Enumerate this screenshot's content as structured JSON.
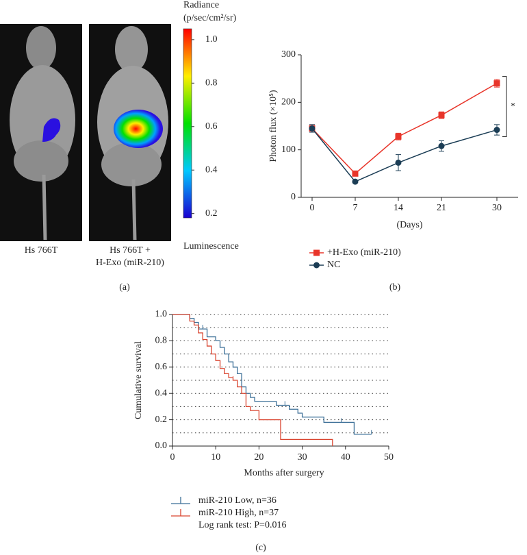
{
  "chart_data": [
    {
      "type": "colorbar",
      "title_lines": [
        "Radiance",
        "(p/sec/cm²/sr)"
      ],
      "footer": "Luminescence",
      "image_labels": [
        [
          "Hs 766T"
        ],
        [
          "Hs 766T +",
          "H-Exo (miR-210)"
        ]
      ],
      "panel_label": "(a)",
      "ylim": [
        0.18,
        1.05
      ],
      "yticks": [
        0.2,
        0.4,
        0.6,
        0.8,
        {
          "value": 1,
          "label": "1.0"
        }
      ],
      "colors": [
        "#1a00d0",
        "#00c8ff",
        "#00e000",
        "#ffee00",
        "#ff0000"
      ]
    },
    {
      "type": "line",
      "panel_label": "(b)",
      "xlabel": "(Days)",
      "ylabel": "Photon flux (×10⁵)",
      "x": [
        0,
        7,
        14,
        21,
        30
      ],
      "xlim": [
        -2,
        34
      ],
      "xticks": [
        0,
        7,
        14,
        21,
        30
      ],
      "ylim": [
        0,
        300
      ],
      "yticks": [
        0,
        100,
        200,
        300
      ],
      "annotation": "*",
      "legend": "bottom-left",
      "series": [
        {
          "name": "+H-Exo (miR-210)",
          "color": "#e8352a",
          "marker": "square",
          "values": [
            145,
            50,
            128,
            173,
            240
          ],
          "errors": [
            8,
            4,
            7,
            7,
            8
          ]
        },
        {
          "name": "NC",
          "color": "#1b3d55",
          "marker": "circle",
          "values": [
            145,
            33,
            73,
            108,
            142
          ],
          "errors": [
            8,
            2,
            17,
            11,
            11
          ]
        }
      ]
    },
    {
      "type": "step",
      "panel_label": "(c)",
      "xlabel": "Months after surgery",
      "ylabel": "Cumulative survival",
      "xlim": [
        0,
        50
      ],
      "xticks": [
        0,
        10,
        20,
        30,
        40,
        50
      ],
      "ylim": [
        0,
        1
      ],
      "yticks": [
        {
          "value": 0,
          "label": "0.0"
        },
        0.2,
        0.4,
        0.6,
        0.8,
        {
          "value": 1,
          "label": "1.0"
        }
      ],
      "ygrid": [
        0.1,
        0.2,
        0.3,
        0.4,
        0.5,
        0.6,
        0.7,
        0.8,
        0.9,
        1
      ],
      "note": "Log rank test: P=0.016",
      "series": [
        {
          "name": "miR-210 Low, n=36",
          "color": "#3a6e96",
          "x": [
            0,
            4,
            5,
            6,
            8,
            10,
            11,
            12,
            13,
            14,
            15,
            16,
            17,
            18,
            19,
            24,
            27,
            29,
            30,
            35,
            42,
            46
          ],
          "values": [
            1,
            0.97,
            0.94,
            0.89,
            0.83,
            0.8,
            0.75,
            0.7,
            0.64,
            0.6,
            0.55,
            0.45,
            0.4,
            0.37,
            0.34,
            0.31,
            0.28,
            0.25,
            0.22,
            0.18,
            0.09,
            0.09
          ],
          "censor_x": [
            7,
            26,
            39,
            46
          ],
          "censor_y": [
            0.89,
            0.31,
            0.18,
            0.09
          ]
        },
        {
          "name": "miR-210 High, n=37",
          "color": "#d9432e",
          "x": [
            0,
            4,
            5,
            6,
            7,
            8,
            9,
            10,
            11,
            12,
            13,
            14,
            15,
            16,
            17,
            18,
            20,
            25,
            37
          ],
          "values": [
            1,
            0.95,
            0.92,
            0.86,
            0.81,
            0.76,
            0.7,
            0.65,
            0.59,
            0.55,
            0.52,
            0.5,
            0.45,
            0.4,
            0.3,
            0.27,
            0.2,
            0.05,
            0
          ],
          "censor_x": [
            14
          ],
          "censor_y": [
            0.5
          ]
        }
      ]
    }
  ]
}
